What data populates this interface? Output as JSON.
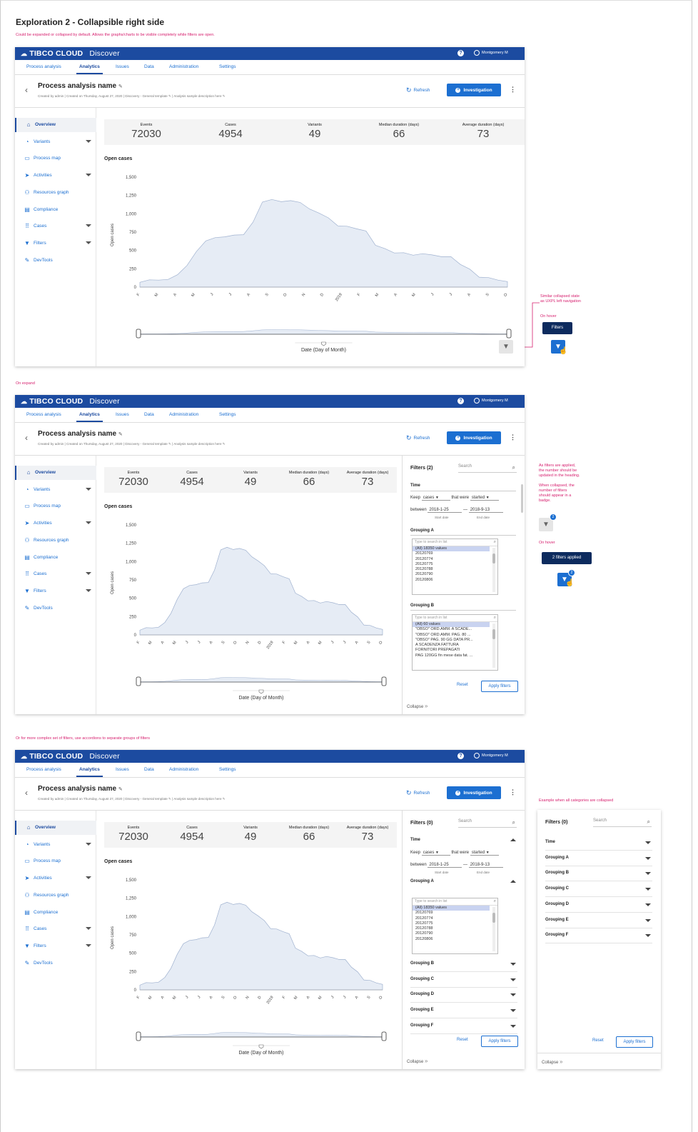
{
  "page": {
    "title": "Exploration 2 - Collapsible right side",
    "subtitle": "Could be expanded or collapsed by default. Allows the graphs/charts to be visible completely while filters are open.",
    "on_expand": "On expand",
    "accordion_note": "Or for more complex set of filters, use accordions to separate groups of filters",
    "note_collapsed": [
      "Similar collapsed state",
      "as UXPL left navigation"
    ],
    "note_hover": "On hover",
    "note_applied": [
      "As filters are applied,",
      "the number should be",
      "updated in the heading.",
      "",
      "When collapsed, the",
      "number of filters",
      "should appear in a",
      "badge."
    ],
    "note_hover2": "On hover",
    "note_example": "Example when all categories are collapsed",
    "tooltip_filters": "Filters",
    "tooltip_applied": "2 filters applied",
    "badge_count": "2"
  },
  "app": {
    "brand": "TIBCO CLOUD",
    "product": "Discover",
    "help": "?",
    "user": "Montgomery M",
    "tabs": [
      "Process analysis",
      "Analytics",
      "Issues",
      "Data",
      "Administration",
      "Settings"
    ],
    "active_tab": "Analytics",
    "analysis_title": "Process analysis name",
    "meta": "Created by admin   |   Created on Thursday, August 27, 2020   |   Discovery - General template ✎   |   Analysis sample description here ✎",
    "refresh": "Refresh",
    "investigation": "Investigation",
    "nav": [
      {
        "label": "Overview",
        "icon": "home-icon",
        "glyph": "⌂",
        "chev": false
      },
      {
        "label": "Variants",
        "icon": "compass-icon",
        "glyph": "◔",
        "chev": true
      },
      {
        "label": "Process map",
        "icon": "map-icon",
        "glyph": "▭",
        "chev": false
      },
      {
        "label": "Activities",
        "icon": "send-icon",
        "glyph": "➤",
        "chev": true
      },
      {
        "label": "Resources graph",
        "icon": "people-icon",
        "glyph": "⚇",
        "chev": false
      },
      {
        "label": "Compliance",
        "icon": "document-icon",
        "glyph": "▤",
        "chev": false
      },
      {
        "label": "Cases",
        "icon": "grid-icon",
        "glyph": "⠿",
        "chev": true
      },
      {
        "label": "Filters",
        "icon": "funnel-icon",
        "glyph": "▼",
        "chev": true
      },
      {
        "label": "DevTools",
        "icon": "wrench-icon",
        "glyph": "✎",
        "chev": false
      }
    ],
    "collapse": "Collapse",
    "stats": [
      {
        "label": "Events",
        "value": "72030"
      },
      {
        "label": "Cases",
        "value": "4954"
      },
      {
        "label": "Variants",
        "value": "49"
      },
      {
        "label": "Median duration (days)",
        "value": "66"
      },
      {
        "label": "Average duration (days)",
        "value": "73"
      }
    ]
  },
  "chart_data": {
    "type": "area",
    "title": "Open cases",
    "ylabel": "Open cases",
    "xlabel": "Date (Day of Month)",
    "ylim": [
      0,
      1500
    ],
    "yticks": [
      "0",
      "250",
      "500",
      "750",
      "1,000",
      "1,250",
      "1,500"
    ],
    "xticks": [
      "F",
      "M",
      "A",
      "M",
      "J",
      "J",
      "A",
      "S",
      "O",
      "N",
      "D",
      "2019",
      "F",
      "M",
      "A",
      "M",
      "J",
      "J",
      "A",
      "S",
      "O"
    ],
    "values": [
      80,
      90,
      100,
      120,
      160,
      300,
      500,
      620,
      680,
      700,
      700,
      720,
      900,
      1150,
      1200,
      1180,
      1170,
      1160,
      1080,
      1000,
      950,
      850,
      820,
      800,
      780,
      560,
      530,
      480,
      460,
      440,
      470,
      430,
      420,
      430,
      300,
      250,
      150,
      120,
      100,
      90
    ]
  },
  "filters_expanded": {
    "title": "Filters (2)",
    "search": "Search",
    "time": "Time",
    "keep": "Keep",
    "keep_value": "cases",
    "that_were": "that were",
    "that_value": "started",
    "between": "between",
    "start": "2018-1-25",
    "end": "2018-9-13",
    "start_label": "Start date",
    "end_label": "End date",
    "group_a": "Grouping A",
    "group_a_search": "Type to search in list",
    "group_a_items": [
      "(All) 18350 values",
      "20120769",
      "20120774",
      "20120775",
      "20120788",
      "20120790",
      "20120806"
    ],
    "group_b": "Grouping B",
    "group_b_search": "Type to search in list",
    "group_b_items": [
      "(All) 60 values",
      "\"OBSO\" ORD.AMM. A SCADE...",
      "\"OBSO\" ORD.AMM. PAG. 80 ...",
      "\"OBSO\" PAG. 90 GG DATA PR...",
      "A SCADENZA FATTURA",
      "FORNITORI PREPAGATI",
      "PAG 120GG fin mese data fat. ..."
    ],
    "reset": "Reset",
    "apply": "Apply filters"
  },
  "filters_accordion": {
    "title": "Filters (0)",
    "search": "Search",
    "time": "Time",
    "keep": "Keep",
    "keep_value": "cases",
    "that_were": "that were",
    "that_value": "started",
    "between": "between",
    "start": "2018-1-25",
    "end": "2018-9-13",
    "start_label": "Start date",
    "end_label": "End date",
    "group_a": "Grouping A",
    "group_a_search": "Type to search in list",
    "group_a_items": [
      "(All) 18350 values",
      "20120769",
      "20120774",
      "20120775",
      "20120788",
      "20120790",
      "20120806"
    ],
    "groups": [
      "Grouping B",
      "Grouping C",
      "Grouping D",
      "Grouping E",
      "Grouping F"
    ],
    "reset": "Reset",
    "apply": "Apply filters"
  },
  "filters_collapsed_all": {
    "title": "Filters (0)",
    "search": "Search",
    "groups": [
      "Time",
      "Grouping A",
      "Grouping B",
      "Grouping C",
      "Grouping D",
      "Grouping E",
      "Grouping F"
    ],
    "reset": "Reset",
    "apply": "Apply filters"
  }
}
